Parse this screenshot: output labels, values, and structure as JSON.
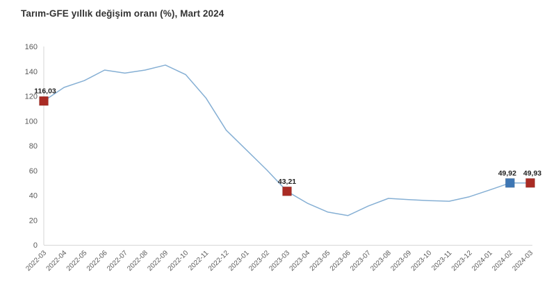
{
  "page": {
    "title": "Tarım-GFE yıllık değişim oranı (%), Mart 2024"
  },
  "colors": {
    "background": "#ffffff",
    "line": "#85afd4",
    "marker_red": "#a92b24",
    "marker_blue": "#3d76b4",
    "axis": "#d6d6d6",
    "tick_text": "#595959",
    "title_text": "#333333",
    "point_label_text": "#222222"
  },
  "chart_data": {
    "type": "line",
    "title": "Tarım-GFE yıllık değişim oranı (%), Mart 2024",
    "xlabel": "",
    "ylabel": "",
    "grid": false,
    "legend_position": "none",
    "ylim": [
      0,
      160
    ],
    "ytick_step": 20,
    "x": [
      "2022-03",
      "2022-04",
      "2022-05",
      "2022-06",
      "2022-07",
      "2022-08",
      "2022-09",
      "2022-10",
      "2022-11",
      "2022-12",
      "2023-01",
      "2023-02",
      "2023-03",
      "2023-04",
      "2023-05",
      "2023-06",
      "2023-07",
      "2023-08",
      "2023-09",
      "2023-10",
      "2023-11",
      "2023-12",
      "2024-01",
      "2024-02",
      "2024-03"
    ],
    "series": [
      {
        "name": "Tarım-GFE yıllık değişim oranı (%)",
        "values": [
          116.03,
          127.0,
          132.5,
          141.0,
          138.5,
          141.0,
          145.0,
          137.3,
          118.5,
          92.5,
          76.5,
          60.5,
          43.21,
          33.6,
          26.5,
          23.6,
          31.3,
          37.5,
          36.5,
          35.7,
          35.2,
          38.8,
          44.3,
          49.92,
          49.93
        ]
      }
    ],
    "annotated_points": [
      {
        "x": "2022-03",
        "value": 116.03,
        "label": "116,03",
        "marker_color": "#a92b24",
        "label_dx": 2
      },
      {
        "x": "2023-03",
        "value": 43.21,
        "label": "43,21",
        "marker_color": "#a92b24",
        "label_dx": 0
      },
      {
        "x": "2024-02",
        "value": 49.92,
        "label": "49,92",
        "marker_color": "#3d76b4",
        "label_dx": -4
      },
      {
        "x": "2024-03",
        "value": 49.93,
        "label": "49,93",
        "marker_color": "#a92b24",
        "label_dx": 3
      }
    ]
  }
}
